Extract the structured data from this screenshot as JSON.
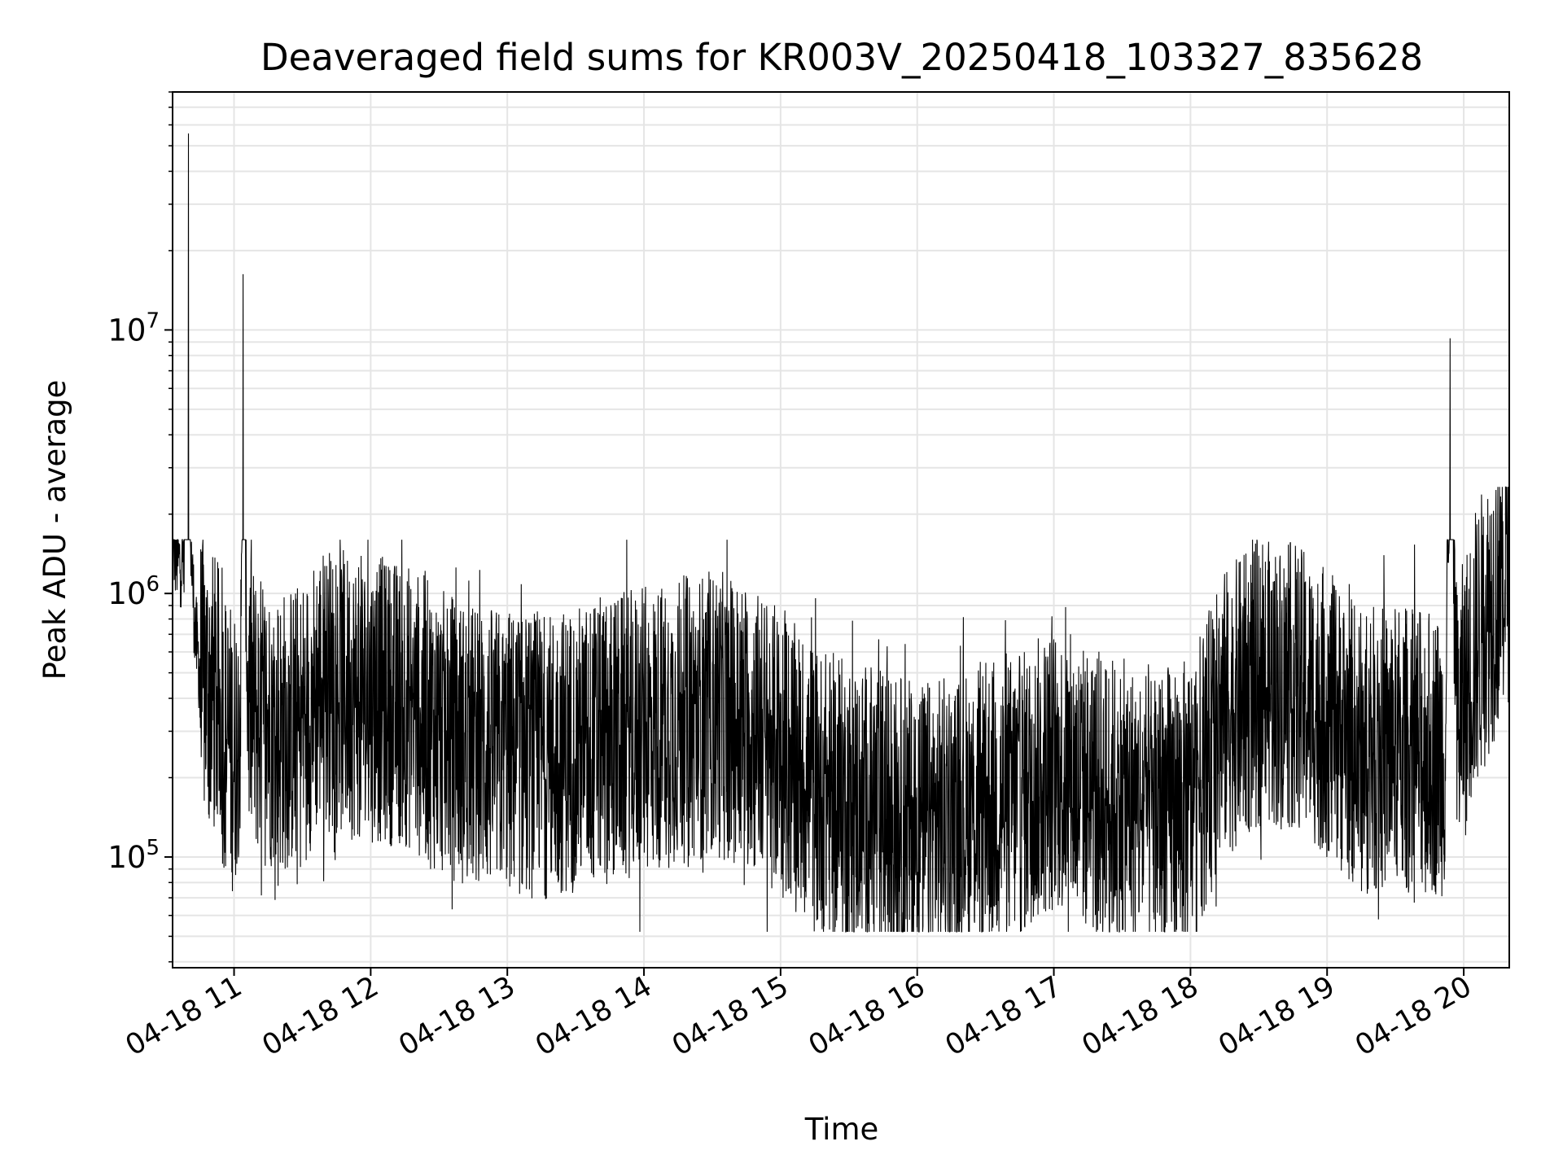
{
  "chart_data": {
    "type": "line",
    "title": "Deaveraged field sums for KR003V_20250418_103327_835628",
    "xlabel": "Time",
    "ylabel": "Peak ADU - average",
    "yscale": "log",
    "ylim": [
      38000,
      80000000
    ],
    "xlim": [
      "04-18 10:33",
      "04-18 20:20"
    ],
    "grid": true,
    "line_color": "#000000",
    "grid_color": "#e5e5e5",
    "x_ticks": [
      "04-18 11",
      "04-18 12",
      "04-18 13",
      "04-18 14",
      "04-18 15",
      "04-18 16",
      "04-18 17",
      "04-18 18",
      "04-18 19",
      "04-18 20"
    ],
    "y_ticks": [
      {
        "value": 100000,
        "base": "10",
        "exp": "5"
      },
      {
        "value": 1000000,
        "base": "10",
        "exp": "6"
      },
      {
        "value": 10000000,
        "base": "10",
        "exp": "7"
      }
    ],
    "series": [
      {
        "x": [
          "04-18 10:33",
          "04-18 10:36",
          "04-18 10:38",
          "04-18 10:40",
          "04-18 10:41",
          "04-18 10:43",
          "04-18 10:45",
          "04-18 10:48",
          "04-18 10:52",
          "04-18 10:56",
          "04-18 11:00",
          "04-18 11:03",
          "04-18 11:04",
          "04-18 11:06",
          "04-18 11:10",
          "04-18 11:20",
          "04-18 11:30",
          "04-18 11:38",
          "04-18 11:45",
          "04-18 12:00",
          "04-18 12:15",
          "04-18 12:30",
          "04-18 12:45",
          "04-18 13:00",
          "04-18 13:15",
          "04-18 13:30",
          "04-18 13:45",
          "04-18 14:00",
          "04-18 14:15",
          "04-18 14:30",
          "04-18 14:45",
          "04-18 15:00",
          "04-18 15:15",
          "04-18 15:30",
          "04-18 15:45",
          "04-18 16:00",
          "04-18 16:15",
          "04-18 16:30",
          "04-18 16:45",
          "04-18 17:00",
          "04-18 17:15",
          "04-18 17:30",
          "04-18 17:45",
          "04-18 18:00",
          "04-18 18:15",
          "04-18 18:30",
          "04-18 18:45",
          "04-18 19:00",
          "04-18 19:15",
          "04-18 19:30",
          "04-18 19:45",
          "04-18 19:52",
          "04-18 19:54",
          "04-18 19:57",
          "04-18 20:05",
          "04-18 20:12",
          "04-18 20:20"
        ],
        "y": [
          1500000,
          1300000,
          1400000,
          60000000,
          1500000,
          700000,
          500000,
          450000,
          400000,
          300000,
          250000,
          400000,
          19000000,
          400000,
          350000,
          300000,
          320000,
          450000,
          420000,
          400000,
          380000,
          300000,
          260000,
          250000,
          240000,
          260000,
          280000,
          300000,
          330000,
          350000,
          320000,
          250000,
          180000,
          160000,
          150000,
          130000,
          140000,
          160000,
          170000,
          220000,
          180000,
          160000,
          150000,
          160000,
          350000,
          450000,
          450000,
          350000,
          250000,
          260000,
          250000,
          250000,
          9300000,
          300000,
          600000,
          900000,
          1400000
        ]
      }
    ]
  }
}
